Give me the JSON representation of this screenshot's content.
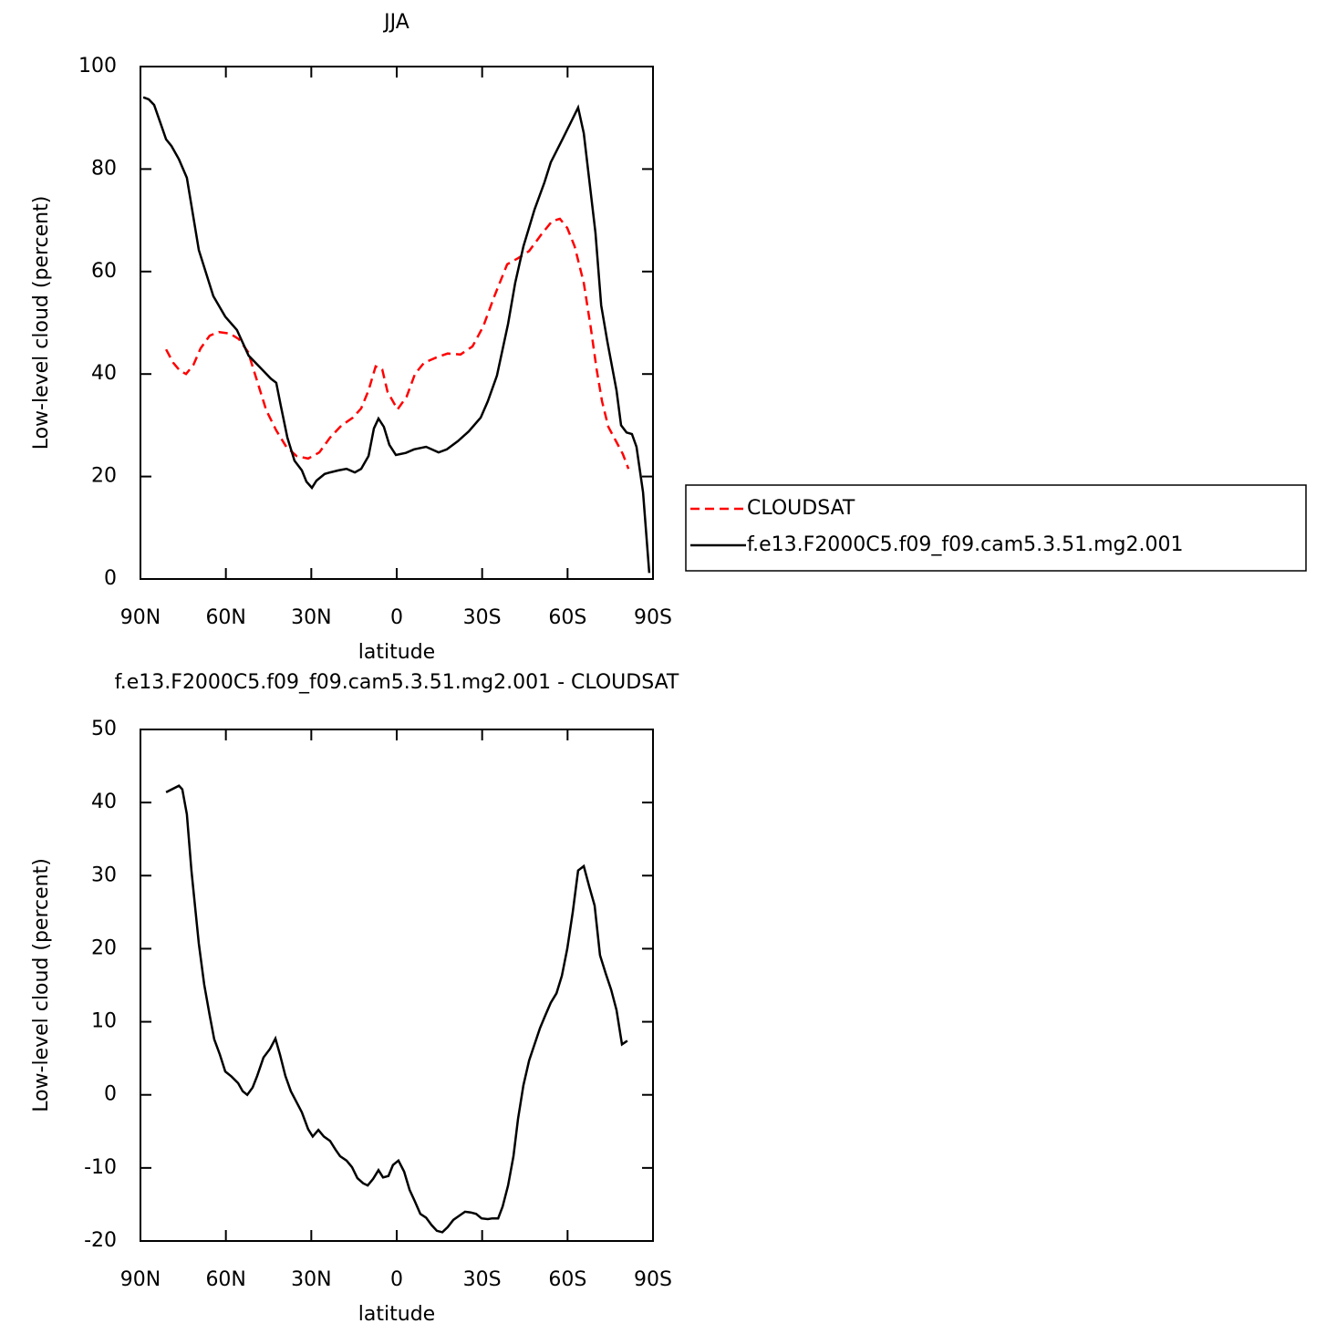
{
  "chart_data": [
    {
      "type": "line",
      "title": "JJA",
      "xlabel": "latitude",
      "ylabel": "Low-level cloud (percent)",
      "xlim": [
        90,
        -90
      ],
      "ylim": [
        0,
        100
      ],
      "xticks": [
        {
          "value": 90,
          "label": "90N"
        },
        {
          "value": 60,
          "label": "60N"
        },
        {
          "value": 30,
          "label": "30N"
        },
        0,
        {
          "value": -30,
          "label": "30S"
        },
        {
          "value": -60,
          "label": "60S"
        },
        {
          "value": -90,
          "label": "90S"
        }
      ],
      "yticks": [
        0,
        20,
        40,
        60,
        80,
        100
      ],
      "legend": "right",
      "series": [
        {
          "name": "CLOUDSAT",
          "color": "#ff0000",
          "dash": true,
          "x": [
            81,
            78.5,
            76.2,
            74,
            71.4,
            68.9,
            65.7,
            62.5,
            58.6,
            55.4,
            52.2,
            49,
            45.8,
            42.3,
            38.8,
            35.2,
            31.1,
            27.2,
            23.4,
            19.5,
            15.4,
            12.5,
            9.9,
            7.4,
            5.1,
            3.2,
            -0.3,
            -3.5,
            -6.4,
            -9.6,
            -13.8,
            -17.9,
            -22.4,
            -26.6,
            -30.4,
            -34.3,
            -38.8,
            -42.6,
            -46.5,
            -50.6,
            -54.5,
            -57.3,
            -59.9,
            -62.5,
            -65.7,
            -68.2,
            -70.2,
            -72.1,
            -74.3,
            -77.2,
            -79.4,
            -81.4
          ],
          "values": [
            44.8,
            42.2,
            40.7,
            40,
            41.8,
            45,
            47.5,
            48.2,
            47.9,
            46.8,
            44.3,
            38.6,
            32.9,
            29,
            25.8,
            24,
            23.5,
            24.7,
            27.6,
            29.9,
            31.5,
            33.3,
            36.8,
            41.5,
            40.9,
            36.5,
            33.1,
            35.6,
            40,
            42.2,
            43.2,
            44,
            43.8,
            45.4,
            49.3,
            55.2,
            61.4,
            62.6,
            64,
            67.1,
            69.8,
            70.3,
            68.5,
            64.9,
            57.8,
            48.9,
            40.9,
            34.7,
            29.7,
            26.7,
            24.4,
            21.5
          ]
        },
        {
          "name": "f.e13.F2000C5.f09_f09.cam5.3.51.mg2.001",
          "color": "#000000",
          "dash": false,
          "x": [
            89,
            87.1,
            85.2,
            83,
            81,
            79.1,
            76.5,
            73.7,
            69.5,
            64.4,
            60.2,
            56.1,
            52,
            48,
            44.2,
            42.3,
            40.7,
            38.4,
            35.9,
            33.3,
            31.7,
            29.8,
            28.2,
            25.3,
            23.4,
            20.5,
            17.6,
            14.7,
            12.5,
            9.9,
            8,
            6.4,
            4.5,
            2.6,
            0.3,
            -3.2,
            -6.1,
            -10.3,
            -14.7,
            -17.6,
            -21.5,
            -25.3,
            -29.5,
            -32,
            -35.2,
            -39.1,
            -41.6,
            -44.5,
            -48.4,
            -51.9,
            -54.1,
            -58.3,
            -61.5,
            -63.7,
            -65.7,
            -69.8,
            -71.8,
            -74,
            -77.2,
            -78.8,
            -80.7,
            -82.6,
            -84.2,
            -86.5,
            -88.7
          ],
          "values": [
            94,
            93.6,
            92.5,
            89,
            85.8,
            84.5,
            81.9,
            78.3,
            64.2,
            55.2,
            51.2,
            48.6,
            43.6,
            41.3,
            39.1,
            38.3,
            33.8,
            27.6,
            23.1,
            21.2,
            19,
            17.8,
            19.2,
            20.5,
            20.8,
            21.2,
            21.5,
            20.8,
            21.5,
            24,
            29.4,
            31.3,
            29.7,
            26.2,
            24.2,
            24.6,
            25.3,
            25.8,
            24.7,
            25.3,
            26.9,
            28.8,
            31.5,
            34.7,
            39.7,
            49.8,
            57.8,
            64.9,
            72.1,
            77.4,
            81.3,
            85.9,
            89.5,
            92,
            87,
            67.6,
            53.4,
            46.3,
            36.8,
            30,
            28.6,
            28.3,
            25.8,
            16.9,
            1.2
          ]
        }
      ]
    },
    {
      "type": "line",
      "title": "f.e13.F2000C5.f09_f09.cam5.3.51.mg2.001 - CLOUDSAT",
      "xlabel": "latitude",
      "ylabel": "Low-level cloud (percent)",
      "xlim": [
        90,
        -90
      ],
      "ylim": [
        -20,
        50
      ],
      "xticks": [
        {
          "value": 90,
          "label": "90N"
        },
        {
          "value": 60,
          "label": "60N"
        },
        {
          "value": 30,
          "label": "30N"
        },
        0,
        {
          "value": -30,
          "label": "30S"
        },
        {
          "value": -60,
          "label": "60S"
        },
        {
          "value": -90,
          "label": "90S"
        }
      ],
      "yticks": [
        -20,
        -10,
        0,
        10,
        20,
        30,
        40,
        50
      ],
      "series": [
        {
          "color": "#000000",
          "dash": false,
          "x": [
            81,
            76.5,
            75.3,
            73.7,
            72.1,
            69.5,
            67.6,
            65.7,
            64.1,
            62.1,
            60.2,
            58,
            55.7,
            54.1,
            52.5,
            50.6,
            49,
            46.8,
            44.5,
            42.6,
            41,
            39.1,
            37.2,
            34.9,
            33.3,
            31.1,
            29.5,
            27.5,
            25.6,
            23.4,
            21.5,
            19.9,
            17.6,
            15.7,
            13.8,
            11.8,
            10.2,
            8.3,
            6.4,
            4.8,
            2.9,
            1.3,
            -0.6,
            -2.6,
            -4.5,
            -6.4,
            -8.3,
            -10.3,
            -12.2,
            -14.1,
            -16,
            -17.9,
            -19.9,
            -22.1,
            -24,
            -26,
            -27.9,
            -29.8,
            -32,
            -33.6,
            -35.6,
            -37.2,
            -39.1,
            -41,
            -42.6,
            -44.5,
            -46.5,
            -48.4,
            -50.3,
            -52.2,
            -54.1,
            -56.1,
            -58,
            -59.9,
            -61.8,
            -63.7,
            -65.7,
            -67.6,
            -69.5,
            -71.4,
            -73.4,
            -75.3,
            -77.2,
            -79.1,
            -81
          ],
          "values": [
            41.4,
            42.3,
            41.8,
            38.4,
            30.7,
            20.7,
            15.1,
            10.9,
            7.6,
            5.5,
            3.2,
            2.5,
            1.6,
            0.5,
            0,
            1,
            2.6,
            5.1,
            6.3,
            7.7,
            5.5,
            2.6,
            0.5,
            -1.2,
            -2.4,
            -4.7,
            -5.7,
            -4.8,
            -5.7,
            -6.3,
            -7.5,
            -8.4,
            -9,
            -9.9,
            -11.4,
            -12.1,
            -12.4,
            -11.5,
            -10.3,
            -11.3,
            -11.1,
            -9.6,
            -9,
            -10.5,
            -13,
            -14.6,
            -16.3,
            -16.8,
            -17.8,
            -18.6,
            -18.8,
            -18.1,
            -17.1,
            -16.5,
            -16,
            -16.1,
            -16.3,
            -16.9,
            -17,
            -16.9,
            -16.9,
            -15.3,
            -12.4,
            -8.4,
            -3.3,
            1.3,
            4.7,
            6.9,
            9.1,
            10.9,
            12.6,
            13.9,
            16.3,
            20,
            25,
            30.7,
            31.3,
            28.5,
            25.9,
            19.1,
            16.6,
            14.4,
            11.6,
            6.9,
            7.4
          ]
        }
      ]
    }
  ]
}
